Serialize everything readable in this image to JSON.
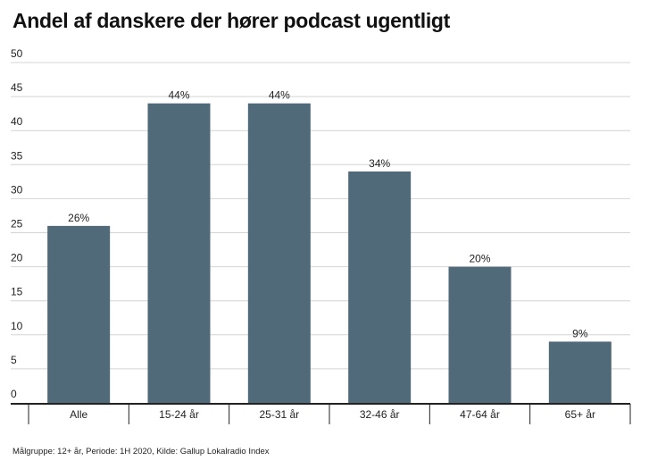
{
  "title": "Andel af danskere der hører podcast ugentligt",
  "note": "Målgruppe: 12+ år, Periode: 1H 2020, Kilde: Gallup Lokalradio Index",
  "colors": {
    "bar": "#506a79",
    "grid": "#d4d4d4",
    "axis": "#222222"
  },
  "chart_data": {
    "type": "bar",
    "title": "Andel af danskere der hører podcast ugentligt",
    "xlabel": "",
    "ylabel": "",
    "ylim": [
      0,
      50
    ],
    "yticks": [
      "0",
      "5",
      "10",
      "15",
      "20",
      "25",
      "30",
      "35",
      "40",
      "45",
      "50"
    ],
    "categories": [
      "Alle",
      "15-24 år",
      "25-31 år",
      "32-46 år",
      "47-64 år",
      "65+ år"
    ],
    "values": [
      26,
      44,
      44,
      34,
      20,
      9
    ],
    "data_labels": [
      "26%",
      "44%",
      "44%",
      "34%",
      "20%",
      "9%"
    ],
    "grid": true,
    "legend": "none"
  }
}
